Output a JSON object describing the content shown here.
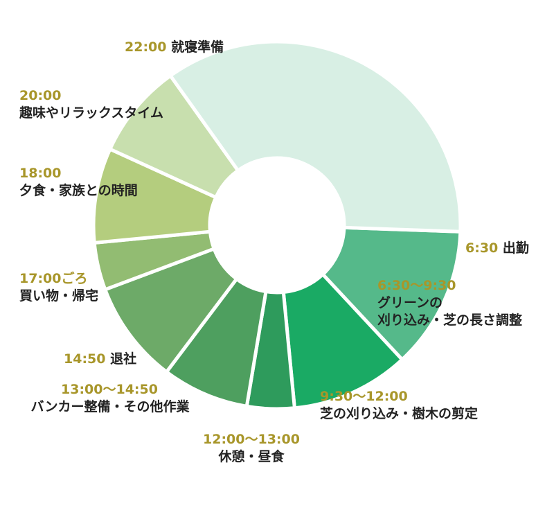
{
  "chart_data": {
    "type": "pie",
    "title": "",
    "start_time_hours": 6.5,
    "slices": [
      {
        "start": "6:30",
        "end": "9:30",
        "duration_hours": 3.0,
        "time_label": "6:30〜9:30",
        "activity_label": "グリーンの\n刈り込み・芝の長さ調整",
        "color": "#55b98a"
      },
      {
        "start": "9:30",
        "end": "12:00",
        "duration_hours": 2.5,
        "time_label": "9:30〜12:00",
        "activity_label": "芝の刈り込み・樹木の剪定",
        "color": "#1aaa64"
      },
      {
        "start": "12:00",
        "end": "13:00",
        "duration_hours": 1.0,
        "time_label": "12:00〜13:00",
        "activity_label": "休憩・昼食",
        "color": "#2e9b5c"
      },
      {
        "start": "13:00",
        "end": "14:50",
        "duration_hours": 1.8333,
        "time_label": "13:00〜14:50",
        "activity_label": "バンカー整備・その他作業",
        "color": "#4e9f5f"
      },
      {
        "start": "14:50",
        "end": "17:00",
        "duration_hours": 2.1667,
        "time_label": "14:50",
        "activity_label": "退社",
        "color": "#6daa68"
      },
      {
        "start": "17:00",
        "end": "18:00",
        "duration_hours": 1.0,
        "time_label": "17:00ごろ",
        "activity_label": "買い物・帰宅",
        "color": "#92bc72"
      },
      {
        "start": "18:00",
        "end": "20:00",
        "duration_hours": 2.0,
        "time_label": "18:00",
        "activity_label": "夕食・家族との時間",
        "color": "#b4cd7e"
      },
      {
        "start": "20:00",
        "end": "22:00",
        "duration_hours": 2.0,
        "time_label": "20:00",
        "activity_label": "趣味やリラックスタイム",
        "color": "#c8dfae"
      },
      {
        "start": "22:00",
        "end": "6:30",
        "duration_hours": 8.5,
        "time_label": "22:00",
        "activity_label": "就寝準備",
        "color": "#d8efe4"
      }
    ],
    "extra_labels": [
      {
        "time_label": "6:30",
        "activity_label": "出勤"
      }
    ]
  }
}
